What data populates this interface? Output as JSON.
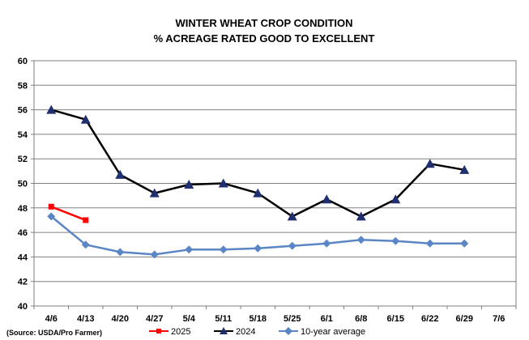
{
  "chart_data": {
    "type": "line",
    "title": "WINTER WHEAT CROP CONDITION",
    "subtitle": "% ACREAGE RATED GOOD TO EXCELLENT",
    "source": "(Source: USDA/Pro Farmer)",
    "categories": [
      "4/6",
      "4/13",
      "4/20",
      "4/27",
      "5/4",
      "5/11",
      "5/18",
      "5/25",
      "6/1",
      "6/8",
      "6/15",
      "6/22",
      "6/29",
      "7/6"
    ],
    "ylim": [
      40,
      60
    ],
    "yticks": [
      40,
      42,
      44,
      46,
      48,
      50,
      52,
      54,
      56,
      58,
      60
    ],
    "grid": true,
    "legend_position": "bottom",
    "series": [
      {
        "name": "2025",
        "color": "#ff0000",
        "marker": "square",
        "values": [
          48.1,
          47.0,
          null,
          null,
          null,
          null,
          null,
          null,
          null,
          null,
          null,
          null,
          null,
          null
        ]
      },
      {
        "name": "2024",
        "color": "#000000",
        "marker_color": "#1f2f6f",
        "marker": "triangle",
        "values": [
          56.0,
          55.2,
          50.7,
          49.2,
          49.9,
          50.0,
          49.2,
          47.3,
          48.7,
          47.3,
          48.7,
          51.6,
          51.1,
          null
        ]
      },
      {
        "name": "10-year average",
        "color": "#5b86c5",
        "marker": "diamond",
        "values": [
          47.3,
          45.0,
          44.4,
          44.2,
          44.6,
          44.6,
          44.7,
          44.9,
          45.1,
          45.4,
          45.3,
          45.1,
          45.1,
          null
        ]
      }
    ]
  }
}
